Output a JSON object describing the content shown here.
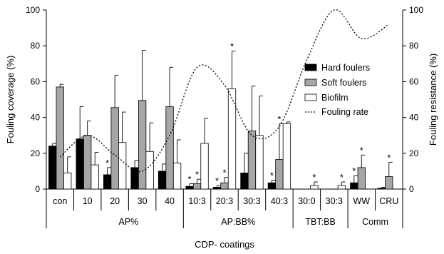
{
  "chart_data": {
    "type": "bar",
    "ylabel": "Fouling coverage (%)",
    "y2label": "Fouling resistance (%)",
    "xlabel": "CDP- coatings",
    "ylim": [
      0,
      100
    ],
    "y2lim": [
      0,
      100
    ],
    "yticks": [
      0,
      20,
      40,
      60,
      80,
      100
    ],
    "grid": false,
    "legend_position": "right",
    "categories": [
      "con",
      "10",
      "20",
      "30",
      "40",
      "10:3",
      "20:3",
      "30:3",
      "40:3",
      "30:0",
      "30:3",
      "WW",
      "CRU"
    ],
    "groups": [
      {
        "label": "AP%",
        "start": 1,
        "end": 4
      },
      {
        "label": "AP:BB%",
        "start": 5,
        "end": 8
      },
      {
        "label": "TBT:BB",
        "start": 9,
        "end": 10
      },
      {
        "label": "Comm",
        "start": 11,
        "end": 12
      }
    ],
    "series": [
      {
        "name": "Hard foulers",
        "color": "#000000",
        "values": [
          24,
          28,
          8,
          12,
          10,
          1.5,
          1,
          9,
          3.5,
          0,
          0,
          3.5,
          0.5
        ],
        "errors": [
          1.5,
          18,
          4,
          4,
          4,
          1.5,
          1,
          11,
          1.5,
          0,
          0,
          4,
          0.5
        ],
        "stars": [
          false,
          false,
          true,
          false,
          false,
          true,
          true,
          false,
          true,
          false,
          false,
          true,
          false
        ]
      },
      {
        "name": "Soft foulers",
        "color": "#a6a6a6",
        "values": [
          57,
          30,
          45.5,
          49.5,
          46,
          3,
          3.5,
          32.5,
          16.5,
          0,
          0,
          12,
          7
        ],
        "errors": [
          1.5,
          8,
          18,
          28,
          22,
          2.5,
          3,
          25,
          20,
          0,
          0,
          7,
          8
        ],
        "stars": [
          false,
          false,
          false,
          false,
          false,
          true,
          true,
          false,
          true,
          false,
          false,
          true,
          true
        ]
      },
      {
        "name": "Biofilm",
        "color": "#ffffff",
        "values": [
          9,
          13.5,
          26,
          21,
          14.5,
          25.5,
          56,
          30,
          36.5,
          2,
          2,
          0,
          0
        ],
        "errors": [
          9,
          7,
          17,
          16,
          13,
          14,
          21,
          22,
          1,
          2,
          2,
          0,
          0
        ],
        "stars": [
          false,
          false,
          false,
          false,
          false,
          false,
          true,
          false,
          false,
          true,
          true,
          false,
          false
        ]
      }
    ],
    "fouling_rate": {
      "name": "Fouling rate",
      "style": "dotted",
      "x": [
        0,
        1,
        2,
        3,
        4,
        5,
        6,
        7,
        8,
        9,
        10,
        11,
        12
      ],
      "y": [
        18,
        30,
        19,
        10,
        30,
        68,
        58,
        30,
        35,
        72,
        100,
        84,
        92
      ]
    }
  }
}
